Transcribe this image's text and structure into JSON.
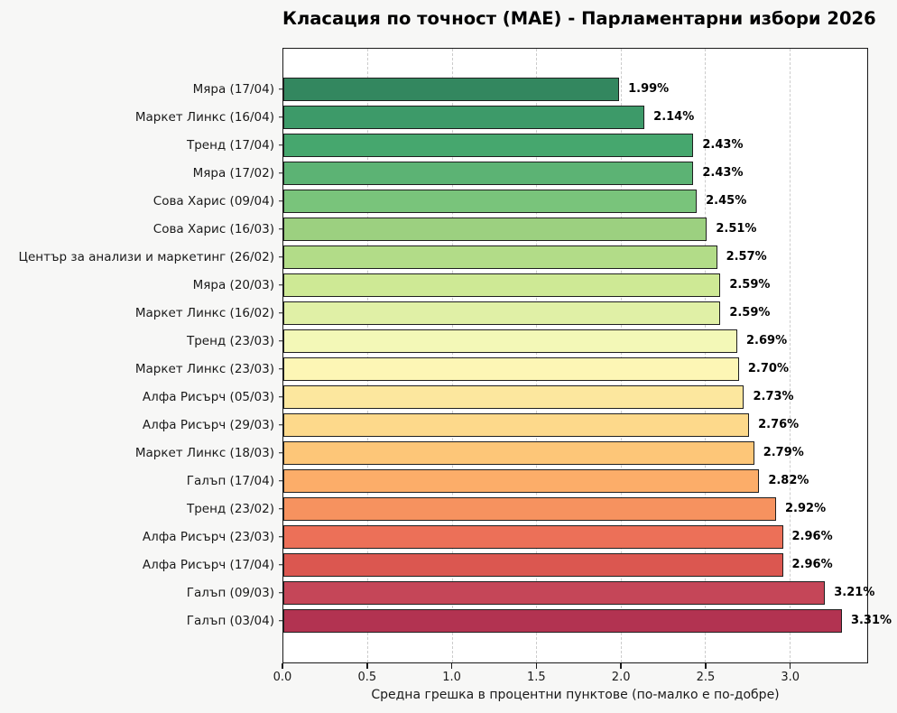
{
  "chart_data": {
    "type": "bar",
    "orientation": "horizontal",
    "title": "Класация по точност (MAE) - Парламентарни избори 2026",
    "xlabel": "Средна грешка в процентни пунктове (по-малко е по-добре)",
    "xlim": [
      0,
      3.46
    ],
    "xticks": [
      {
        "value": 0.0,
        "label": "0.0"
      },
      {
        "value": 0.5,
        "label": "0.5"
      },
      {
        "value": 1.0,
        "label": "1.0"
      },
      {
        "value": 1.5,
        "label": "1.5"
      },
      {
        "value": 2.0,
        "label": "2.0"
      },
      {
        "value": 2.5,
        "label": "2.5"
      },
      {
        "value": 3.0,
        "label": "3.0"
      }
    ],
    "gridline_values": [
      0.5,
      1.0,
      1.5,
      2.0,
      2.5,
      3.0
    ],
    "grid": "vertical-dashed",
    "legend": "none",
    "categories": [
      "Мяра (17/04)",
      "Маркет Линкс (16/04)",
      "Тренд (17/04)",
      "Мяра (17/02)",
      "Сова Харис (09/04)",
      "Сова Харис (16/03)",
      "Център за анализи и маркетинг (26/02)",
      "Мяра (20/03)",
      "Маркет Линкс (16/02)",
      "Тренд (23/03)",
      "Маркет Линкс (23/03)",
      "Алфа Рисърч (05/03)",
      "Алфа Рисърч (29/03)",
      "Маркет Линкс (18/03)",
      "Галъп (17/04)",
      "Тренд (23/02)",
      "Алфа Рисърч (23/03)",
      "Алфа Рисърч (17/04)",
      "Галъп (09/03)",
      "Галъп (03/04)"
    ],
    "values": [
      1.99,
      2.14,
      2.43,
      2.43,
      2.45,
      2.51,
      2.57,
      2.59,
      2.59,
      2.69,
      2.7,
      2.73,
      2.76,
      2.79,
      2.82,
      2.92,
      2.96,
      2.96,
      3.21,
      3.31
    ],
    "value_labels": [
      "1.99%",
      "2.14%",
      "2.43%",
      "2.43%",
      "2.45%",
      "2.51%",
      "2.57%",
      "2.59%",
      "2.59%",
      "2.69%",
      "2.70%",
      "2.73%",
      "2.76%",
      "2.79%",
      "2.82%",
      "2.92%",
      "2.96%",
      "2.96%",
      "3.21%",
      "3.31%"
    ],
    "bar_colors": [
      "#33875F",
      "#3D9A69",
      "#46A76E",
      "#5CB374",
      "#79C47B",
      "#9CD080",
      "#B2DC88",
      "#CEE995",
      "#E0F0A6",
      "#F3F8B7",
      "#FDF6B5",
      "#FCE79E",
      "#FDD98B",
      "#FDC678",
      "#FCAD69",
      "#F6925F",
      "#EC7058",
      "#DB5750",
      "#C54658",
      "#B23351"
    ]
  },
  "colors": {
    "figure_bg": "#f7f7f6",
    "plot_bg": "#ffffff",
    "bar_edge": "#1f1f1f",
    "plot_border": "#1a1a1a",
    "gridline": "#cccccc",
    "text": "#000000"
  }
}
